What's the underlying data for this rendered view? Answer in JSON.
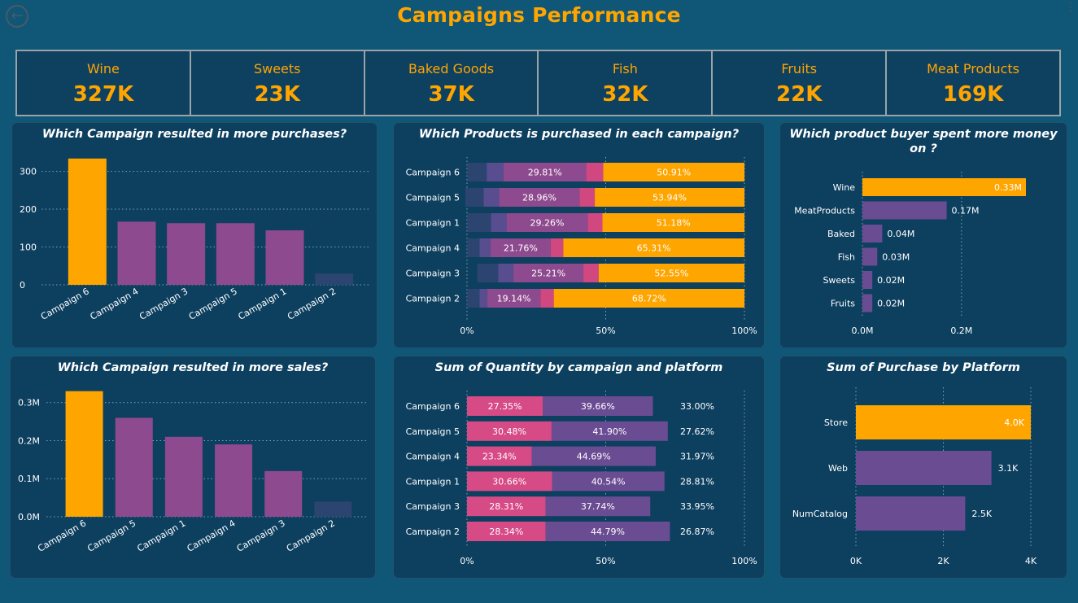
{
  "title": "Campaigns Performance",
  "colors": {
    "accent": "#ffa500",
    "purple": "#8e4a8e",
    "violet": "#6a4c93",
    "pink": "#d64a86",
    "navy": "#2c4470",
    "bg": "#0f5677",
    "panel": "#0d3f5f"
  },
  "kpis": [
    {
      "label": "Wine",
      "value": "327K"
    },
    {
      "label": "Sweets",
      "value": "23K"
    },
    {
      "label": "Baked Goods",
      "value": "37K"
    },
    {
      "label": "Fish",
      "value": "32K"
    },
    {
      "label": "Fruits",
      "value": "22K"
    },
    {
      "label": "Meat Products",
      "value": "169K"
    }
  ],
  "chart_data": [
    {
      "type": "bar",
      "title": "Which Campaign resulted in more purchases?",
      "categories": [
        "Campaign 6",
        "Campaign 4",
        "Campaign 3",
        "Campaign 5",
        "Campaign 1",
        "Campaign 2"
      ],
      "values": [
        334,
        167,
        163,
        163,
        144,
        30
      ],
      "yticks": [
        "0",
        "100",
        "200",
        "300"
      ],
      "ylim": [
        0,
        340
      ],
      "grid": true
    },
    {
      "type": "bar",
      "orientation": "horizontal",
      "stacked": "percent",
      "title": "Which Products is purchased in each campaign?",
      "categories": [
        "Campaign 6",
        "Campaign 5",
        "Campaign 1",
        "Campaign 4",
        "Campaign 3",
        "Campaign 2"
      ],
      "series": [
        {
          "values": [
            7.0,
            6.6,
            8.6,
            4.5,
            7.5,
            4.5
          ]
        },
        {
          "values": [
            6.1,
            5.6,
            5.6,
            3.9,
            5.5,
            2.8
          ]
        },
        {
          "values": [
            29.81,
            28.96,
            29.26,
            21.76,
            25.21,
            19.14
          ]
        },
        {
          "values": [
            6.1,
            5.5,
            5.3,
            4.5,
            5.5,
            4.8
          ]
        },
        {
          "values": [
            50.91,
            53.94,
            51.18,
            65.31,
            52.55,
            68.72
          ]
        }
      ],
      "labels": [
        [
          "29.81%",
          "50.91%"
        ],
        [
          "28.96%",
          "53.94%"
        ],
        [
          "29.26%",
          "51.18%"
        ],
        [
          "21.76%",
          "65.31%"
        ],
        [
          "25.21%",
          "52.55%"
        ],
        [
          "19.14%",
          "68.72%"
        ]
      ],
      "xticks": [
        "0%",
        "50%",
        "100%"
      ],
      "grid": true
    },
    {
      "type": "bar",
      "orientation": "horizontal",
      "title": "Which product buyer spent more money on ?",
      "categories": [
        "Wine",
        "MeatProducts",
        "Baked",
        "Fish",
        "Sweets",
        "Fruits"
      ],
      "values": [
        0.33,
        0.17,
        0.04,
        0.03,
        0.02,
        0.02
      ],
      "labels": [
        "0.33M",
        "0.17M",
        "0.04M",
        "0.03M",
        "0.02M",
        "0.02M"
      ],
      "xticks": [
        "0.0M",
        "0.2M"
      ],
      "xlim": [
        0,
        0.33
      ],
      "grid": true
    },
    {
      "type": "bar",
      "title": "Which Campaign resulted in more sales?",
      "categories": [
        "Campaign 6",
        "Campaign 5",
        "Campaign 1",
        "Campaign 4",
        "Campaign 3",
        "Campaign 2"
      ],
      "values": [
        0.33,
        0.26,
        0.21,
        0.19,
        0.12,
        0.04
      ],
      "yticks": [
        "0.0M",
        "0.1M",
        "0.2M",
        "0.3M"
      ],
      "ylim": [
        0,
        0.34
      ],
      "grid": true
    },
    {
      "type": "bar",
      "orientation": "horizontal",
      "stacked": true,
      "title": "Sum of Quantity by campaign and platform",
      "categories": [
        "Campaign 6",
        "Campaign 5",
        "Campaign 4",
        "Campaign 1",
        "Campaign 3",
        "Campaign 2"
      ],
      "series": [
        {
          "values": [
            27.35,
            30.48,
            23.34,
            30.66,
            28.31,
            28.34
          ],
          "labels": [
            "27.35%",
            "30.48%",
            "23.34%",
            "30.66%",
            "28.31%",
            "28.34%"
          ]
        },
        {
          "values": [
            39.66,
            41.9,
            44.69,
            40.54,
            37.74,
            44.79
          ],
          "labels": [
            "39.66%",
            "41.90%",
            "44.69%",
            "40.54%",
            "37.74%",
            "44.79%"
          ]
        },
        {
          "values": [
            33.0,
            27.62,
            31.97,
            28.81,
            33.95,
            26.87
          ],
          "labels": [
            "33.00%",
            "27.62%",
            "31.97%",
            "28.81%",
            "33.95%",
            "26.87%"
          ]
        }
      ],
      "xticks": [
        "0%",
        "50%",
        "100%"
      ],
      "grid": true
    },
    {
      "type": "bar",
      "orientation": "horizontal",
      "title": "Sum of Purchase by Platform",
      "categories": [
        "Store",
        "Web",
        "NumCatalog"
      ],
      "values": [
        4.0,
        3.1,
        2.5
      ],
      "labels": [
        "4.0K",
        "3.1K",
        "2.5K"
      ],
      "xticks": [
        "0K",
        "2K",
        "4K"
      ],
      "xlim": [
        0,
        4
      ],
      "grid": true
    }
  ]
}
